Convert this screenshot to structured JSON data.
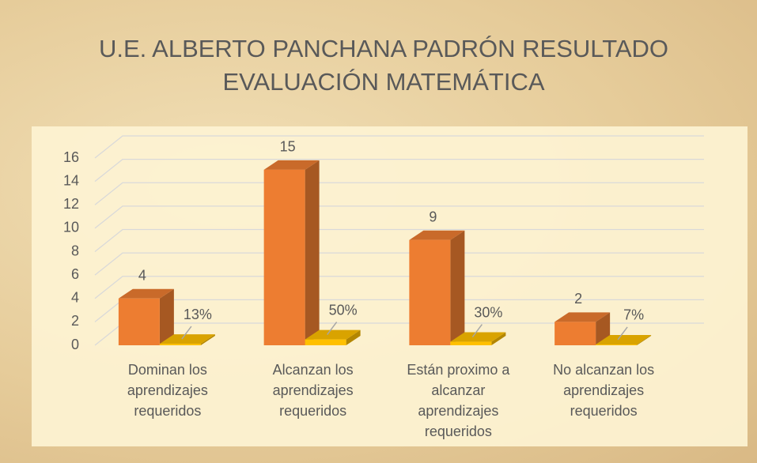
{
  "chart_data": {
    "type": "bar3d",
    "title": "U.E. ALBERTO PANCHANA PADRÓN RESULTADO",
    "subtitle": "EVALUACIÓN MATEMÁTICA",
    "categories": [
      "Dominan los aprendizajes requeridos",
      "Alcanzan los aprendizajes requeridos",
      "Están proximo a alcanzar aprendizajes requeridos",
      "No alcanzan los aprendizajes requeridos"
    ],
    "series": [
      {
        "color": "#ed7d31",
        "values": [
          4,
          15,
          9,
          2
        ]
      },
      {
        "color": "#ffc000",
        "values": [
          0.13,
          0.5,
          0.3,
          0.07
        ],
        "value_labels": [
          "13%",
          "50%",
          "30%",
          "7%"
        ]
      }
    ],
    "ylim": [
      0,
      16
    ],
    "yticks": [
      0,
      2,
      4,
      6,
      8,
      10,
      12,
      14,
      16
    ],
    "grid": true
  }
}
